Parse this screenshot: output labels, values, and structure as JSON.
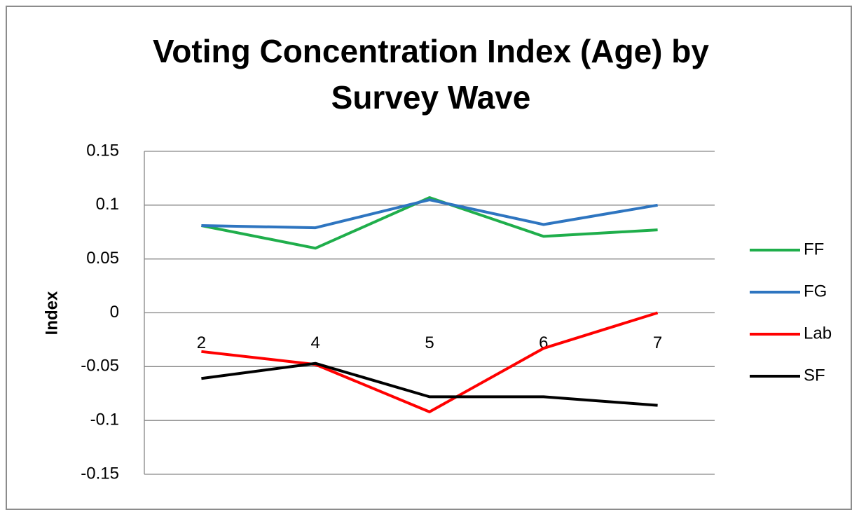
{
  "chart_data": {
    "type": "line",
    "title": "Voting Concentration Index (Age) by Survey Wave",
    "y_label": "Index",
    "categories": [
      "2",
      "4",
      "5",
      "6",
      "7"
    ],
    "series": [
      {
        "name": "FF",
        "color": "#1fae4b",
        "values": [
          0.081,
          0.06,
          0.107,
          0.071,
          0.077
        ]
      },
      {
        "name": "FG",
        "color": "#2e75c0",
        "values": [
          0.081,
          0.079,
          0.105,
          0.082,
          0.1
        ]
      },
      {
        "name": "Lab",
        "color": "#ff0000",
        "values": [
          -0.036,
          -0.048,
          -0.092,
          -0.033,
          0
        ]
      },
      {
        "name": "SF",
        "color": "#000000",
        "values": [
          -0.061,
          -0.047,
          -0.078,
          -0.078,
          -0.086
        ]
      }
    ],
    "ylim": [
      -0.15,
      0.15
    ],
    "yticks": [
      0.15,
      0.1,
      0.05,
      0,
      -0.05,
      -0.1,
      -0.15
    ],
    "grid": true,
    "legend": "right"
  }
}
